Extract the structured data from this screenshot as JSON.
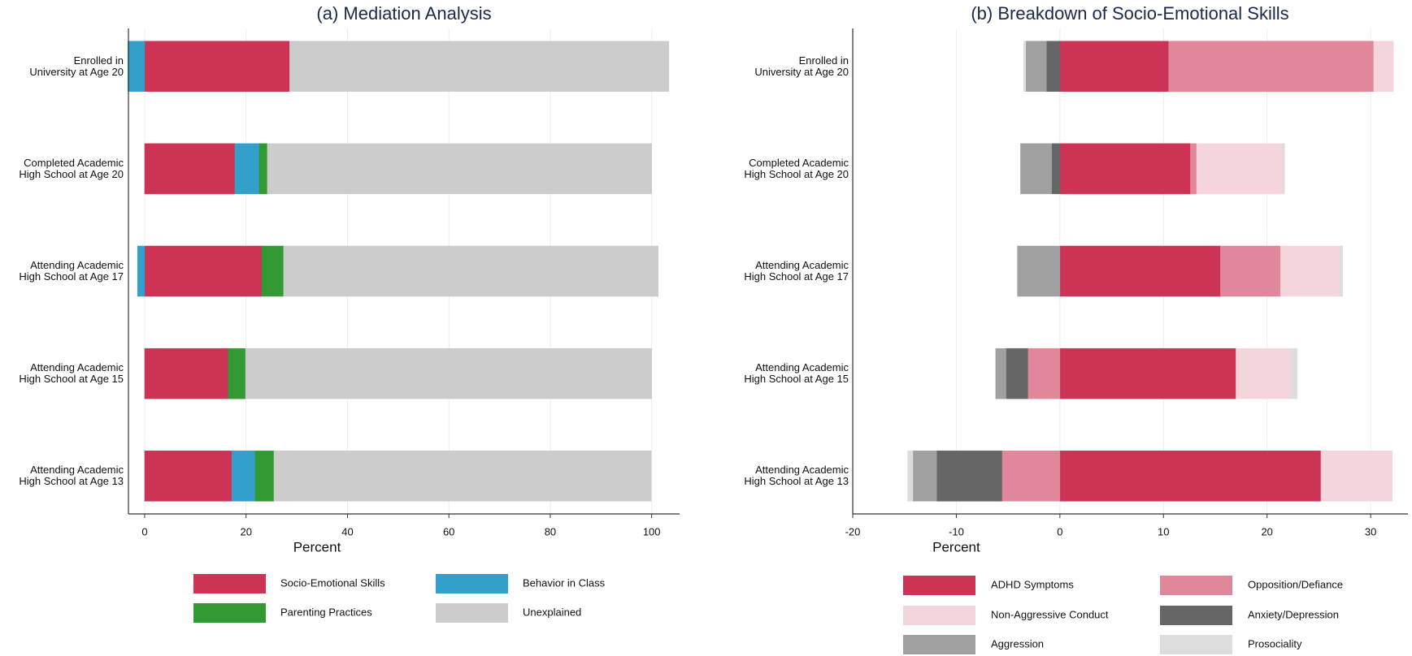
{
  "chart_data": [
    {
      "type": "bar",
      "orientation": "horizontal",
      "stacked": true,
      "title": "(a) Mediation Analysis",
      "x_label": "Percent",
      "categories": [
        "Enrolled in\nUniversity at Age 20",
        "Completed Academic\nHigh School at Age 20",
        "Attending Academic\nHigh School at Age 17",
        "Attending Academic\nHigh School at Age 15",
        "Attending Academic\nHigh School at Age 13"
      ],
      "series": [
        {
          "name": "Socio-Emotional Skills",
          "color": "#cc3355",
          "values": [
            28.6,
            17.8,
            23.1,
            16.5,
            17.2
          ]
        },
        {
          "name": "Behavior in Class",
          "color": "#33a0cc",
          "values": [
            -3.3,
            4.8,
            -1.4,
            0,
            4.6
          ]
        },
        {
          "name": "Parenting Practices",
          "color": "#339933",
          "values": [
            0,
            1.6,
            4.3,
            3.4,
            3.7
          ]
        },
        {
          "name": "Unexplained",
          "color": "#cccccc",
          "values": [
            74.8,
            75.8,
            73.9,
            80.1,
            74.4
          ]
        }
      ],
      "xlim": [
        -3.2,
        105.5
      ],
      "xticks": [
        0,
        20,
        40,
        60,
        80,
        100
      ],
      "grid": true,
      "legend": "bottom"
    },
    {
      "type": "bar",
      "orientation": "horizontal",
      "stacked": true,
      "title": "(b) Breakdown of Socio-Emotional Skills",
      "x_label": "Percent",
      "categories": [
        "Enrolled in\nUniversity at Age 20",
        "Completed Academic\nHigh School at Age 20",
        "Attending Academic\nHigh School at Age 17",
        "Attending Academic\nHigh School at Age 15",
        "Attending Academic\nHigh School at Age 13"
      ],
      "series": [
        {
          "name": "ADHD Symptoms",
          "color": "#cc3355",
          "values": [
            10.5,
            12.6,
            15.5,
            17.0,
            25.2
          ]
        },
        {
          "name": "Opposition/Defiance",
          "color": "#e0879a",
          "values": [
            19.8,
            0.6,
            5.8,
            -3.1,
            -5.6
          ]
        },
        {
          "name": "Non-Aggressive Conduct",
          "color": "#f5d5dc",
          "values": [
            1.9,
            8.3,
            5.7,
            5.3,
            6.9
          ]
        },
        {
          "name": "Anxiety/Depression",
          "color": "#666666",
          "values": [
            -1.3,
            -0.8,
            0,
            -2.1,
            -6.3
          ]
        },
        {
          "name": "Aggression",
          "color": "#a0a0a0",
          "values": [
            -2.0,
            -3.0,
            -4.1,
            -1.0,
            -2.3
          ]
        },
        {
          "name": "Prosociality",
          "color": "#dddddd",
          "values": [
            -0.2,
            0.2,
            0.3,
            0.6,
            -0.5
          ]
        }
      ],
      "xlim": [
        -20,
        33.6
      ],
      "xticks": [
        -20,
        -10,
        0,
        10,
        20,
        30
      ],
      "grid": true,
      "legend": "bottom"
    }
  ]
}
